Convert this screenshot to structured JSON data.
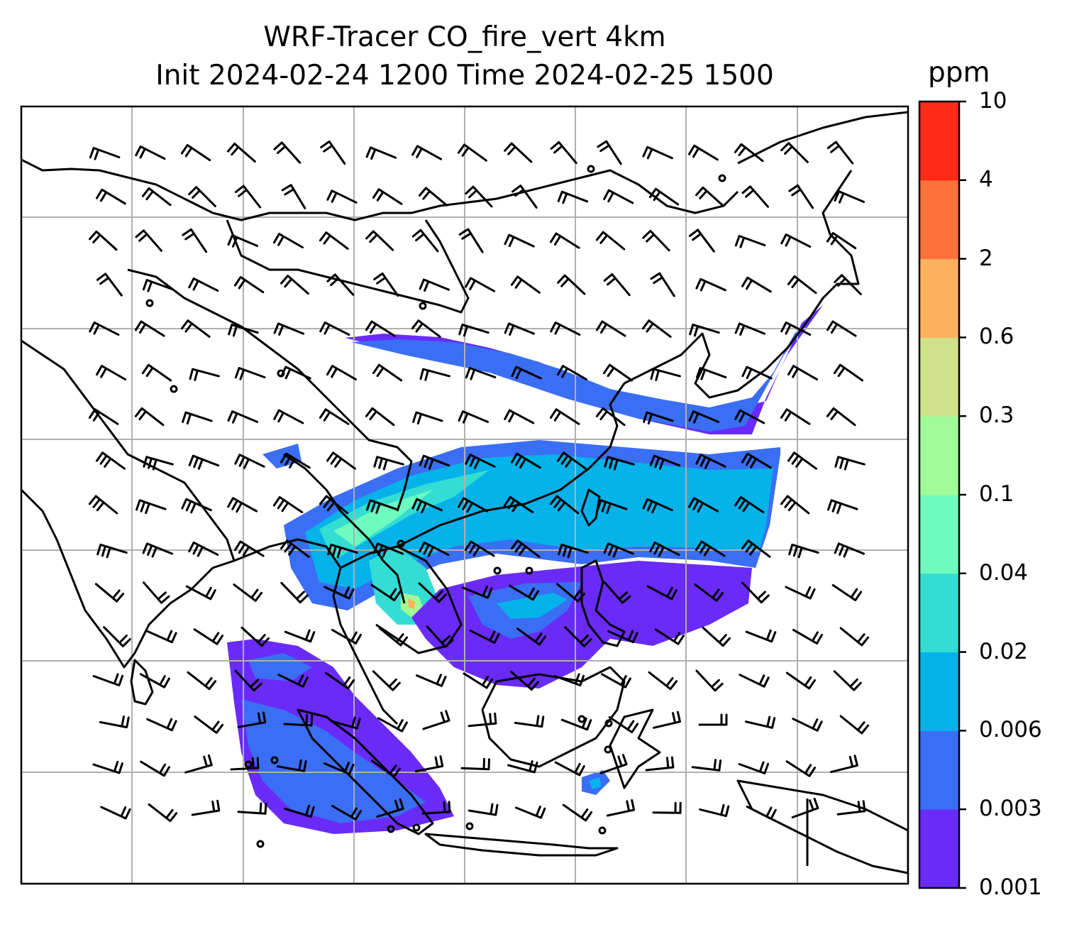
{
  "title": {
    "line1": "WRF-Tracer CO_fire_vert 4km",
    "line2": "Init 2024-02-24 1200 Time 2024-02-25 1500"
  },
  "colorbar": {
    "unit": "ppm",
    "levels": [
      {
        "label": "0.001",
        "color": "#6a2bf8"
      },
      {
        "label": "0.003",
        "color": "#3a6ef4"
      },
      {
        "label": "0.006",
        "color": "#05b2ea"
      },
      {
        "label": "0.02",
        "color": "#33ddd4"
      },
      {
        "label": "0.04",
        "color": "#6efbbf"
      },
      {
        "label": "0.1",
        "color": "#a0fb98"
      },
      {
        "label": "0.3",
        "color": "#d1e08a"
      },
      {
        "label": "0.6",
        "color": "#fdb15f"
      },
      {
        "label": "2",
        "color": "#fe713a"
      },
      {
        "label": "4",
        "color": "#ff2a17"
      },
      {
        "label": "10",
        "color": null
      }
    ]
  },
  "map": {
    "features": [
      "coastlines",
      "country-borders",
      "lat-lon-gridlines",
      "wind-barbs",
      "tracer-filled-contours"
    ],
    "gridline_color": "#b0b0b0"
  }
}
